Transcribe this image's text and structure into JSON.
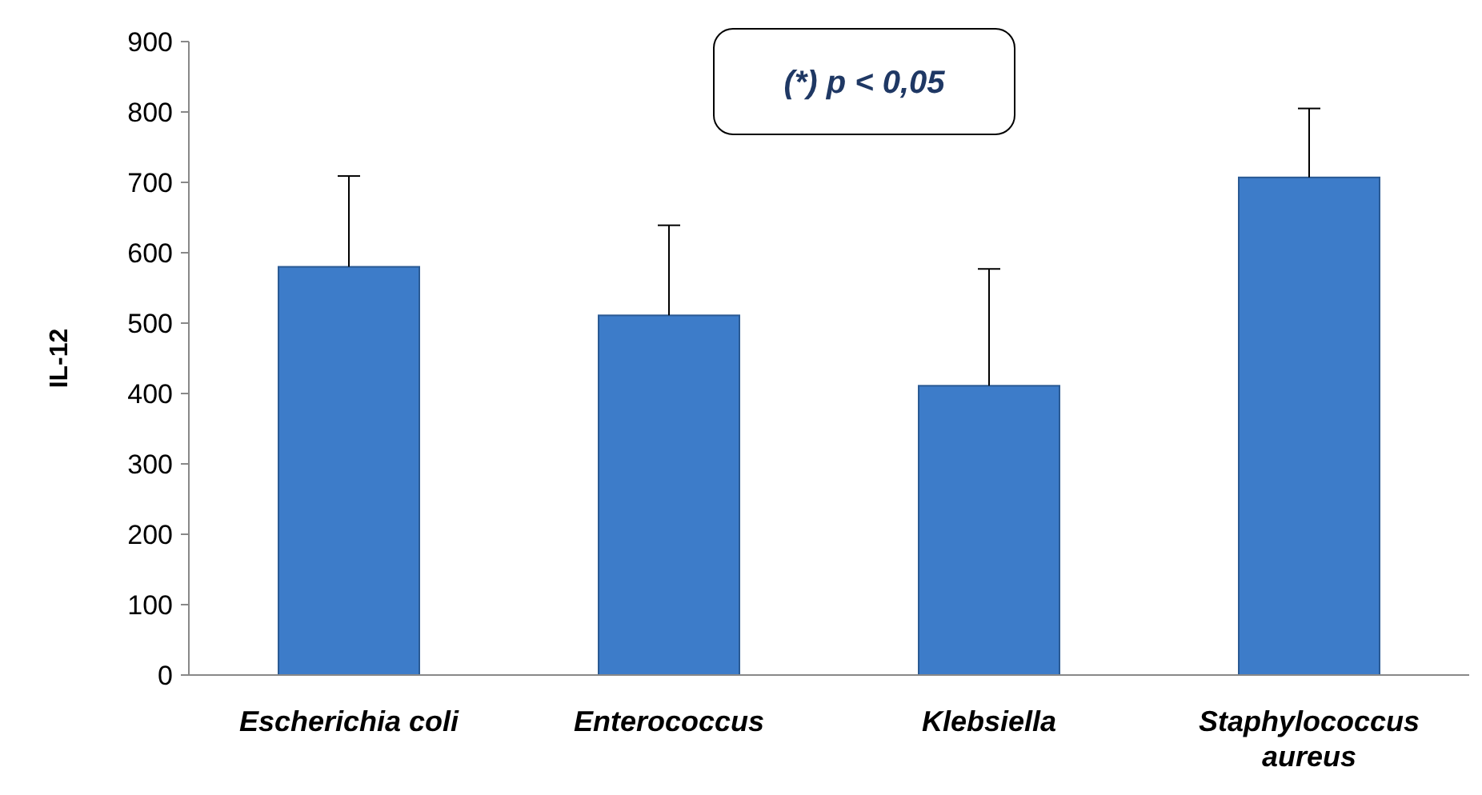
{
  "chart_data": {
    "type": "bar",
    "ylabel": "IL-12",
    "categories": [
      "Escherichia coli",
      "Enterococcus",
      "Klebsiella",
      "Staphylococcus aureus"
    ],
    "values": [
      580,
      511,
      411,
      707
    ],
    "errors": [
      [
        580,
        709
      ],
      [
        511,
        639
      ],
      [
        411,
        577
      ],
      [
        707,
        805
      ]
    ],
    "color": "#3d7cc9",
    "ylim": [
      0,
      900
    ],
    "yticks": [
      0,
      100,
      200,
      300,
      400,
      500,
      600,
      700,
      800,
      900
    ],
    "grid": false,
    "annotations": [
      "(*) p < 0,05"
    ]
  }
}
